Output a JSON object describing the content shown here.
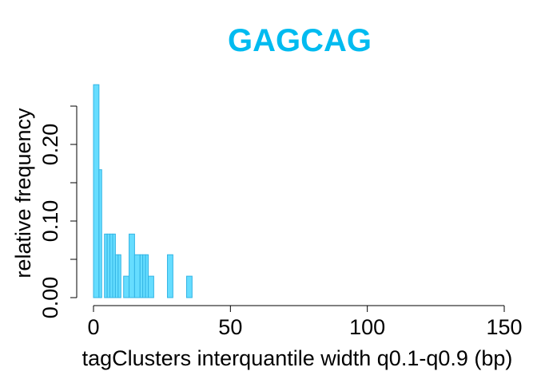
{
  "chart_data": {
    "type": "bar",
    "title": "GAGCAG",
    "xlabel": "tagClusters interquantile width q0.1-q0.9 (bp)",
    "ylabel": "relative frequency",
    "xlim": [
      0,
      150
    ],
    "ylim": [
      0,
      0.25
    ],
    "x_ticks": [
      "0",
      "50",
      "100",
      "150"
    ],
    "y_ticks": [
      "0.00",
      "0.10",
      "0.20"
    ],
    "bin_width": 1,
    "bins": [
      {
        "x0": 0,
        "x1": 2,
        "value": 0.278
      },
      {
        "x0": 2,
        "x1": 3,
        "value": 0.167
      },
      {
        "x0": 3,
        "x1": 4,
        "value": 0.0
      },
      {
        "x0": 4,
        "x1": 5,
        "value": 0.083
      },
      {
        "x0": 5,
        "x1": 6,
        "value": 0.083
      },
      {
        "x0": 6,
        "x1": 7,
        "value": 0.083
      },
      {
        "x0": 7,
        "x1": 8,
        "value": 0.083
      },
      {
        "x0": 8,
        "x1": 9,
        "value": 0.056
      },
      {
        "x0": 9,
        "x1": 10,
        "value": 0.056
      },
      {
        "x0": 11,
        "x1": 13,
        "value": 0.028
      },
      {
        "x0": 13,
        "x1": 15,
        "value": 0.083
      },
      {
        "x0": 15,
        "x1": 17,
        "value": 0.056
      },
      {
        "x0": 17,
        "x1": 18,
        "value": 0.056
      },
      {
        "x0": 18,
        "x1": 19,
        "value": 0.056
      },
      {
        "x0": 19,
        "x1": 20,
        "value": 0.056
      },
      {
        "x0": 20,
        "x1": 22,
        "value": 0.028
      },
      {
        "x0": 22,
        "x1": 27,
        "value": 0.0
      },
      {
        "x0": 27,
        "x1": 29,
        "value": 0.056
      },
      {
        "x0": 29,
        "x1": 34,
        "value": 0.0
      },
      {
        "x0": 34,
        "x1": 36,
        "value": 0.028
      }
    ],
    "colors": {
      "title": "#00BBF0",
      "bar_fill": "#66DDFF",
      "bar_stroke": "#33B5E5"
    },
    "grid": false,
    "legend": "none"
  }
}
